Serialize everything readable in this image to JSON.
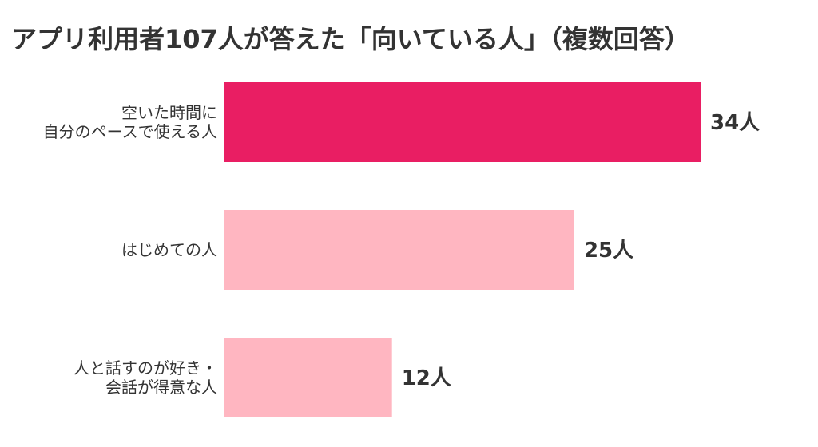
{
  "title": "アプリ利用者107人が答えた「向いている人」（複数回答）",
  "colors": {
    "highlight": "#e91e63",
    "normal": "#ffb6c1"
  },
  "chart_data": {
    "type": "bar",
    "orientation": "horizontal",
    "title": "アプリ利用者107人が答えた「向いている人」（複数回答）",
    "categories": [
      [
        "空いた時間に",
        "自分のペースで使える人"
      ],
      [
        "はじめての人"
      ],
      [
        "人と話すのが好き・",
        "会話が得意な人"
      ]
    ],
    "values": [
      34,
      25,
      12
    ],
    "value_unit": "人",
    "highlight_index": 0,
    "grid": false,
    "legend": "none"
  }
}
